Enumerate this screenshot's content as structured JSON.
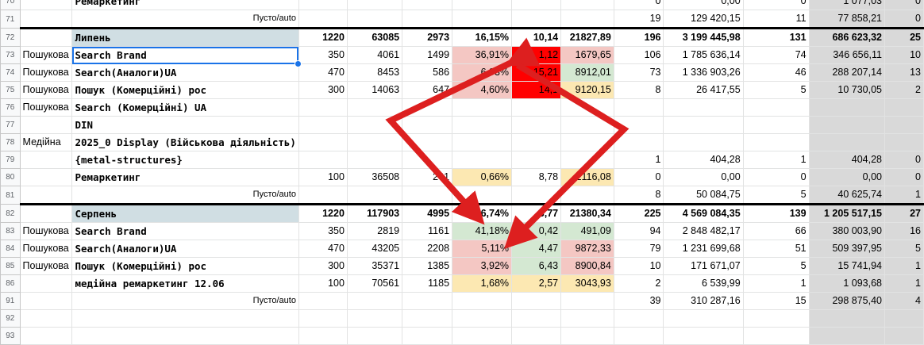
{
  "colors": {
    "header_band": "#d0dee3",
    "grey_band": "#d9d9d9",
    "red_fill": "#ff0000",
    "pink_fill": "#f4c7c3",
    "green_fill": "#d4e8d2",
    "yellow_fill": "#fce8b2",
    "selection": "#1a73e8",
    "arrow": "#dd1f1f"
  },
  "rows": [
    {
      "num": "70",
      "cells": [
        "",
        "Ремаркетинг",
        "",
        "",
        "",
        "",
        "",
        "",
        "0",
        "0,00",
        "0",
        "1 077,03",
        "0"
      ]
    },
    {
      "num": "71",
      "cells": [
        "",
        "Пусто/auto",
        "",
        "",
        "",
        "",
        "",
        "",
        "19",
        "129 420,15",
        "11",
        "77 858,21",
        "0"
      ]
    },
    {
      "num": "72",
      "cells": [
        "",
        "Липень",
        "1220",
        "63085",
        "2973",
        "16,15%",
        "10,14",
        "21827,89",
        "196",
        "3 199 445,98",
        "131",
        "686 623,32",
        "25"
      ]
    },
    {
      "num": "73",
      "cells": [
        "Пошукова",
        "Search Brand",
        "350",
        "4061",
        "1499",
        "36,91%",
        "1,12",
        "1679,65",
        "106",
        "1 785 636,14",
        "74",
        "346 656,11",
        "10"
      ]
    },
    {
      "num": "74",
      "cells": [
        "Пошукова",
        "Search(Аналоги)UA",
        "470",
        "8453",
        "586",
        "6,93%",
        "15,21",
        "8912,01",
        "73",
        "1 336 903,26",
        "46",
        "288 207,14",
        "13"
      ]
    },
    {
      "num": "75",
      "cells": [
        "Пошукова",
        "Пошук (Комерційні) рос",
        "300",
        "14063",
        "647",
        "4,60%",
        "14,1",
        "9120,15",
        "8",
        "26 417,55",
        "5",
        "10 730,05",
        "2"
      ]
    },
    {
      "num": "76",
      "cells": [
        "Пошукова",
        "Search (Комерційні) UA",
        "",
        "",
        "",
        "",
        "",
        "",
        "",
        "",
        "",
        "",
        ""
      ]
    },
    {
      "num": "77",
      "cells": [
        "",
        "DIN",
        "",
        "",
        "",
        "",
        "",
        "",
        "",
        "",
        "",
        "",
        ""
      ]
    },
    {
      "num": "78",
      "cells": [
        "Медійна",
        "2025_0 Display (Військова діяльність)",
        "",
        "",
        "",
        "",
        "",
        "",
        "",
        "",
        "",
        "",
        ""
      ]
    },
    {
      "num": "79",
      "cells": [
        "",
        "{metal-structures}",
        "",
        "",
        "",
        "",
        "",
        "",
        "1",
        "404,28",
        "1",
        "404,28",
        "0"
      ]
    },
    {
      "num": "80",
      "cells": [
        "",
        "Ремаркетинг",
        "100",
        "36508",
        "241",
        "0,66%",
        "8,78",
        "2116,08",
        "0",
        "0,00",
        "0",
        "0,00",
        "0"
      ]
    },
    {
      "num": "81",
      "cells": [
        "",
        "Пусто/auto",
        "",
        "",
        "",
        "",
        "",
        "",
        "8",
        "50 084,75",
        "5",
        "40 625,74",
        "1"
      ]
    },
    {
      "num": "82",
      "cells": [
        "",
        "Серпень",
        "1220",
        "117903",
        "4995",
        "16,74%",
        "3,77",
        "21380,34",
        "225",
        "4 569 084,35",
        "139",
        "1 205 517,15",
        "27"
      ]
    },
    {
      "num": "83",
      "cells": [
        "Пошукова",
        "Search Brand",
        "350",
        "2819",
        "1161",
        "41,18%",
        "0,42",
        "491,09",
        "94",
        "2 848 482,17",
        "66",
        "380 003,90",
        "16"
      ]
    },
    {
      "num": "84",
      "cells": [
        "Пошукова",
        "Search(Аналоги)UA",
        "470",
        "43205",
        "2208",
        "5,11%",
        "4,47",
        "9872,33",
        "79",
        "1 231 699,68",
        "51",
        "509 397,95",
        "5"
      ]
    },
    {
      "num": "85",
      "cells": [
        "Пошукова",
        "Пошук (Комерційні) рос",
        "300",
        "35371",
        "1385",
        "3,92%",
        "6,43",
        "8900,84",
        "10",
        "171 671,07",
        "5",
        "15 741,94",
        "1"
      ]
    },
    {
      "num": "86",
      "cells": [
        "",
        "медійна ремаркетинг 12.06",
        "100",
        "70561",
        "1185",
        "1,68%",
        "2,57",
        "3043,93",
        "2",
        "6 539,99",
        "1",
        "1 093,68",
        "1"
      ]
    },
    {
      "num": "91",
      "cells": [
        "",
        "Пусто/auto",
        "",
        "",
        "",
        "",
        "",
        "",
        "39",
        "310 287,16",
        "15",
        "298 875,40",
        "4"
      ]
    },
    {
      "num": "92",
      "cells": [
        "",
        "",
        "",
        "",
        "",
        "",
        "",
        "",
        "",
        "",
        "",
        "",
        ""
      ]
    },
    {
      "num": "93",
      "cells": [
        "",
        "",
        "",
        "",
        "",
        "",
        "",
        "",
        "",
        "",
        "",
        "",
        ""
      ]
    }
  ]
}
